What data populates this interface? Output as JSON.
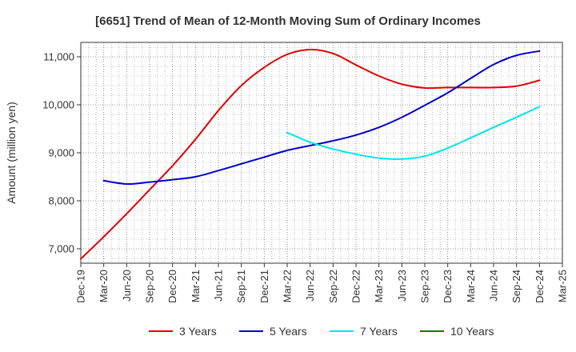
{
  "chart_data": {
    "type": "line",
    "title": "[6651]  Trend of Mean of 12-Month Moving Sum of Ordinary Incomes",
    "xlabel": "",
    "ylabel": "Amount (million yen)",
    "x_ticks": [
      "Dec-19",
      "Mar-20",
      "Jun-20",
      "Sep-20",
      "Dec-20",
      "Mar-21",
      "Jun-21",
      "Sep-21",
      "Dec-21",
      "Mar-22",
      "Jun-22",
      "Sep-22",
      "Dec-22",
      "Mar-23",
      "Jun-23",
      "Sep-23",
      "Dec-23",
      "Mar-24",
      "Jun-24",
      "Sep-24",
      "Dec-24",
      "Mar-25"
    ],
    "y_ticks": [
      7000,
      8000,
      9000,
      10000,
      11000
    ],
    "y_tick_labels": [
      "7,000",
      "8,000",
      "9,000",
      "10,000",
      "11,000"
    ],
    "ylim": [
      6700,
      11300
    ],
    "grid": true,
    "legend_position": "bottom",
    "series": [
      {
        "name": "3 Years",
        "color": "#e00000",
        "x": [
          "Dec-19",
          "Mar-20",
          "Jun-20",
          "Sep-20",
          "Dec-20",
          "Mar-21",
          "Jun-21",
          "Sep-21",
          "Dec-21",
          "Mar-22",
          "Jun-22",
          "Sep-22",
          "Dec-22",
          "Mar-23",
          "Jun-23",
          "Sep-23",
          "Dec-23",
          "Mar-24",
          "Jun-24",
          "Sep-24",
          "Dec-24"
        ],
        "values": [
          6790,
          7250,
          7730,
          8230,
          8730,
          9280,
          9880,
          10400,
          10780,
          11050,
          11150,
          11070,
          10830,
          10600,
          10430,
          10350,
          10360,
          10360,
          10360,
          10390,
          10510
        ]
      },
      {
        "name": "5 Years",
        "color": "#0000cc",
        "x": [
          "Mar-20",
          "Jun-20",
          "Sep-20",
          "Dec-20",
          "Mar-21",
          "Jun-21",
          "Sep-21",
          "Dec-21",
          "Mar-22",
          "Jun-22",
          "Sep-22",
          "Dec-22",
          "Mar-23",
          "Jun-23",
          "Sep-23",
          "Dec-23",
          "Mar-24",
          "Jun-24",
          "Sep-24",
          "Dec-24"
        ],
        "values": [
          8420,
          8350,
          8390,
          8440,
          8500,
          8630,
          8770,
          8910,
          9050,
          9150,
          9250,
          9370,
          9530,
          9740,
          9990,
          10250,
          10550,
          10840,
          11030,
          11120
        ]
      },
      {
        "name": "7 Years",
        "color": "#00e5ee",
        "x": [
          "Mar-22",
          "Jun-22",
          "Sep-22",
          "Dec-22",
          "Mar-23",
          "Jun-23",
          "Sep-23",
          "Dec-23",
          "Mar-24",
          "Jun-24",
          "Sep-24",
          "Dec-24"
        ],
        "values": [
          9420,
          9220,
          9080,
          8970,
          8890,
          8870,
          8930,
          9100,
          9310,
          9530,
          9740,
          9960
        ]
      },
      {
        "name": "10 Years",
        "color": "#008000",
        "x": [],
        "values": []
      }
    ]
  }
}
